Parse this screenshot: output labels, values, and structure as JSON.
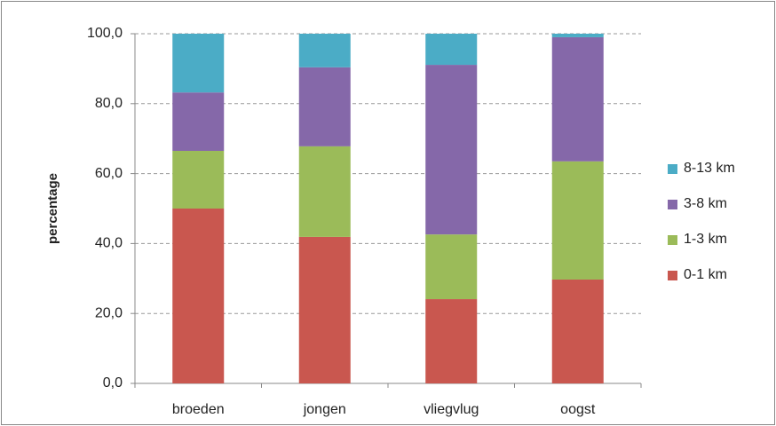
{
  "chart_data": {
    "type": "stacked_bar",
    "y_label": "percentage",
    "categories": [
      "broeden",
      "jongen",
      "vliegvlug",
      "oogst"
    ],
    "series": [
      {
        "name": "0-1 km",
        "color": "#c9574f",
        "values": [
          50.0,
          41.9,
          24.1,
          29.7
        ]
      },
      {
        "name": "1-3 km",
        "color": "#9bbb59",
        "values": [
          16.5,
          25.9,
          18.5,
          33.8
        ]
      },
      {
        "name": "3-8 km",
        "color": "#8568a9",
        "values": [
          16.7,
          22.6,
          48.5,
          35.5
        ]
      },
      {
        "name": "8-13 km",
        "color": "#4bacc6",
        "values": [
          16.8,
          9.6,
          8.9,
          1.0
        ]
      }
    ],
    "ylim": [
      0,
      100
    ],
    "yticks": [
      {
        "value": 0,
        "label": "0,0"
      },
      {
        "value": 20,
        "label": "20,0"
      },
      {
        "value": 40,
        "label": "40,0"
      },
      {
        "value": 60,
        "label": "60,0"
      },
      {
        "value": 80,
        "label": "80,0"
      },
      {
        "value": 100,
        "label": "100,0"
      }
    ],
    "grid": true,
    "legend": "right"
  }
}
